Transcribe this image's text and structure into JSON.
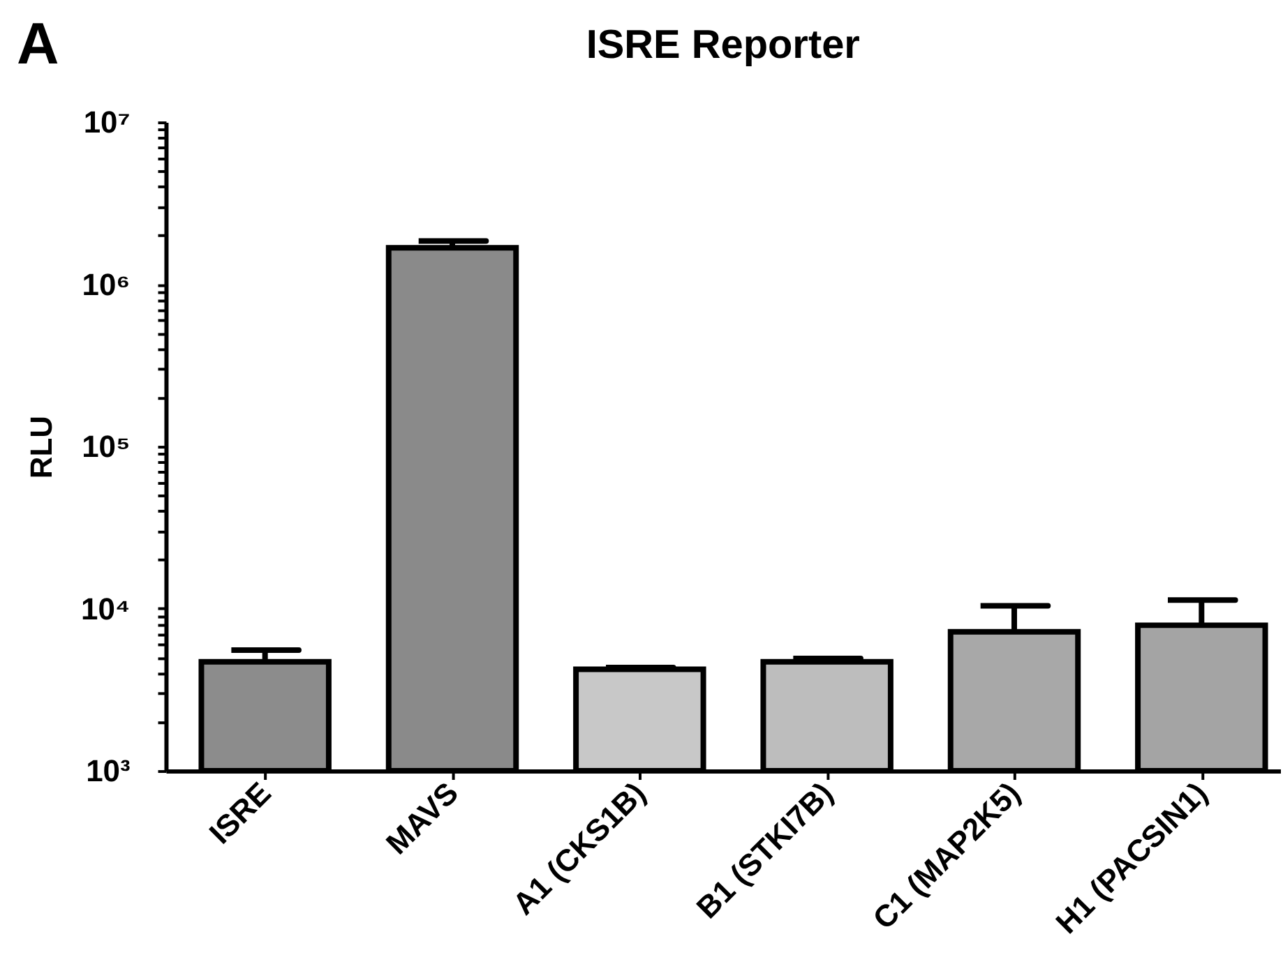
{
  "chart_data": {
    "type": "bar",
    "title": "ISRE Reporter",
    "ylabel": "RLU",
    "annotations": [
      "A"
    ],
    "categories": [
      "ISRE",
      "MAVS",
      "A1 (CKS1B)",
      "B1 (STKI7B)",
      "C1 (MAP2K5)",
      "H1 (PACSIN1)"
    ],
    "values": [
      4700,
      1680000,
      4230,
      4700,
      7200,
      7900
    ],
    "errors": [
      850,
      170000,
      100,
      230,
      3200,
      3400
    ],
    "colors": [
      "#8c8c8c",
      "#8a8a8a",
      "#c8c8c8",
      "#bdbdbd",
      "#a8a8a8",
      "#a4a4a4"
    ],
    "log": true,
    "ylim": [
      1000,
      10000000
    ],
    "yticks": [
      {
        "value": 1000,
        "label": "10³"
      },
      {
        "value": 2000,
        "label": null
      },
      {
        "value": 3000,
        "label": null
      },
      {
        "value": 4000,
        "label": null
      },
      {
        "value": 5000,
        "label": null
      },
      {
        "value": 6000,
        "label": null
      },
      {
        "value": 7000,
        "label": null
      },
      {
        "value": 8000,
        "label": null
      },
      {
        "value": 9000,
        "label": null
      },
      {
        "value": 10000,
        "label": "10⁴"
      },
      {
        "value": 20000,
        "label": null
      },
      {
        "value": 30000,
        "label": null
      },
      {
        "value": 40000,
        "label": null
      },
      {
        "value": 50000,
        "label": null
      },
      {
        "value": 60000,
        "label": null
      },
      {
        "value": 70000,
        "label": null
      },
      {
        "value": 80000,
        "label": null
      },
      {
        "value": 90000,
        "label": null
      },
      {
        "value": 100000,
        "label": "10⁵"
      },
      {
        "value": 200000,
        "label": null
      },
      {
        "value": 300000,
        "label": null
      },
      {
        "value": 400000,
        "label": null
      },
      {
        "value": 500000,
        "label": null
      },
      {
        "value": 600000,
        "label": null
      },
      {
        "value": 700000,
        "label": null
      },
      {
        "value": 800000,
        "label": null
      },
      {
        "value": 900000,
        "label": null
      },
      {
        "value": 1000000,
        "label": "10⁶"
      },
      {
        "value": 2000000,
        "label": null
      },
      {
        "value": 3000000,
        "label": null
      },
      {
        "value": 4000000,
        "label": null
      },
      {
        "value": 5000000,
        "label": null
      },
      {
        "value": 6000000,
        "label": null
      },
      {
        "value": 7000000,
        "label": null
      },
      {
        "value": 8000000,
        "label": null
      },
      {
        "value": 9000000,
        "label": null
      },
      {
        "value": 10000000,
        "label": "10⁷"
      }
    ]
  }
}
